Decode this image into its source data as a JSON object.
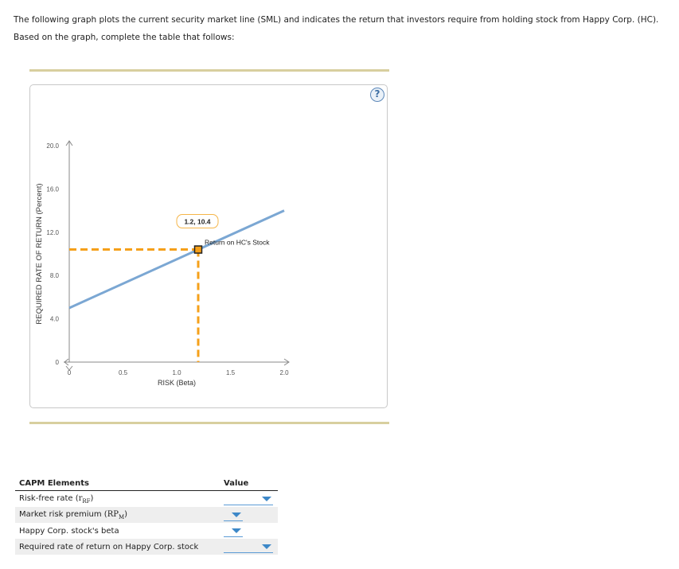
{
  "intro": {
    "text": "The following graph plots the current security market line (SML) and indicates the return that investors require from holding stock from Happy Corp. (HC). Based on the graph, complete the table that follows:"
  },
  "chart": {
    "help_label": "?"
  },
  "chart_data": {
    "type": "line",
    "title": "",
    "xlabel": "RISK (Beta)",
    "ylabel": "REQUIRED RATE OF RETURN (Percent)",
    "xlim": [
      0,
      2.0
    ],
    "ylim": [
      0,
      20.0
    ],
    "x_ticks": [
      "0",
      "0.5",
      "1.0",
      "1.5",
      "2.0"
    ],
    "y_ticks": [
      "0",
      "4.0",
      "8.0",
      "12.0",
      "16.0",
      "20.0"
    ],
    "grid": false,
    "series": [
      {
        "name": "SML",
        "color": "#7ba7d3",
        "x": [
          0,
          2.0
        ],
        "y": [
          5.0,
          14.0
        ]
      }
    ],
    "point": {
      "name": "Return on HC's Stock",
      "x": 1.2,
      "y": 10.4,
      "label": "1.2, 10.4",
      "color": "#f5a01a"
    },
    "annotations": [
      "1.2, 10.4",
      "Return on HC's Stock"
    ]
  },
  "capm": {
    "header_elements": "CAPM Elements",
    "header_value": "Value",
    "rows": [
      {
        "label": "Risk-free rate (",
        "sym": "r",
        "sub": "RF",
        "close": ")",
        "value": ""
      },
      {
        "label": "Market risk premium (",
        "sym": "RP",
        "sub": "M",
        "close": ")",
        "value": ""
      },
      {
        "label": "Happy Corp. stock's beta",
        "value": ""
      },
      {
        "label": "Required rate of return on Happy Corp. stock",
        "value": ""
      }
    ]
  }
}
